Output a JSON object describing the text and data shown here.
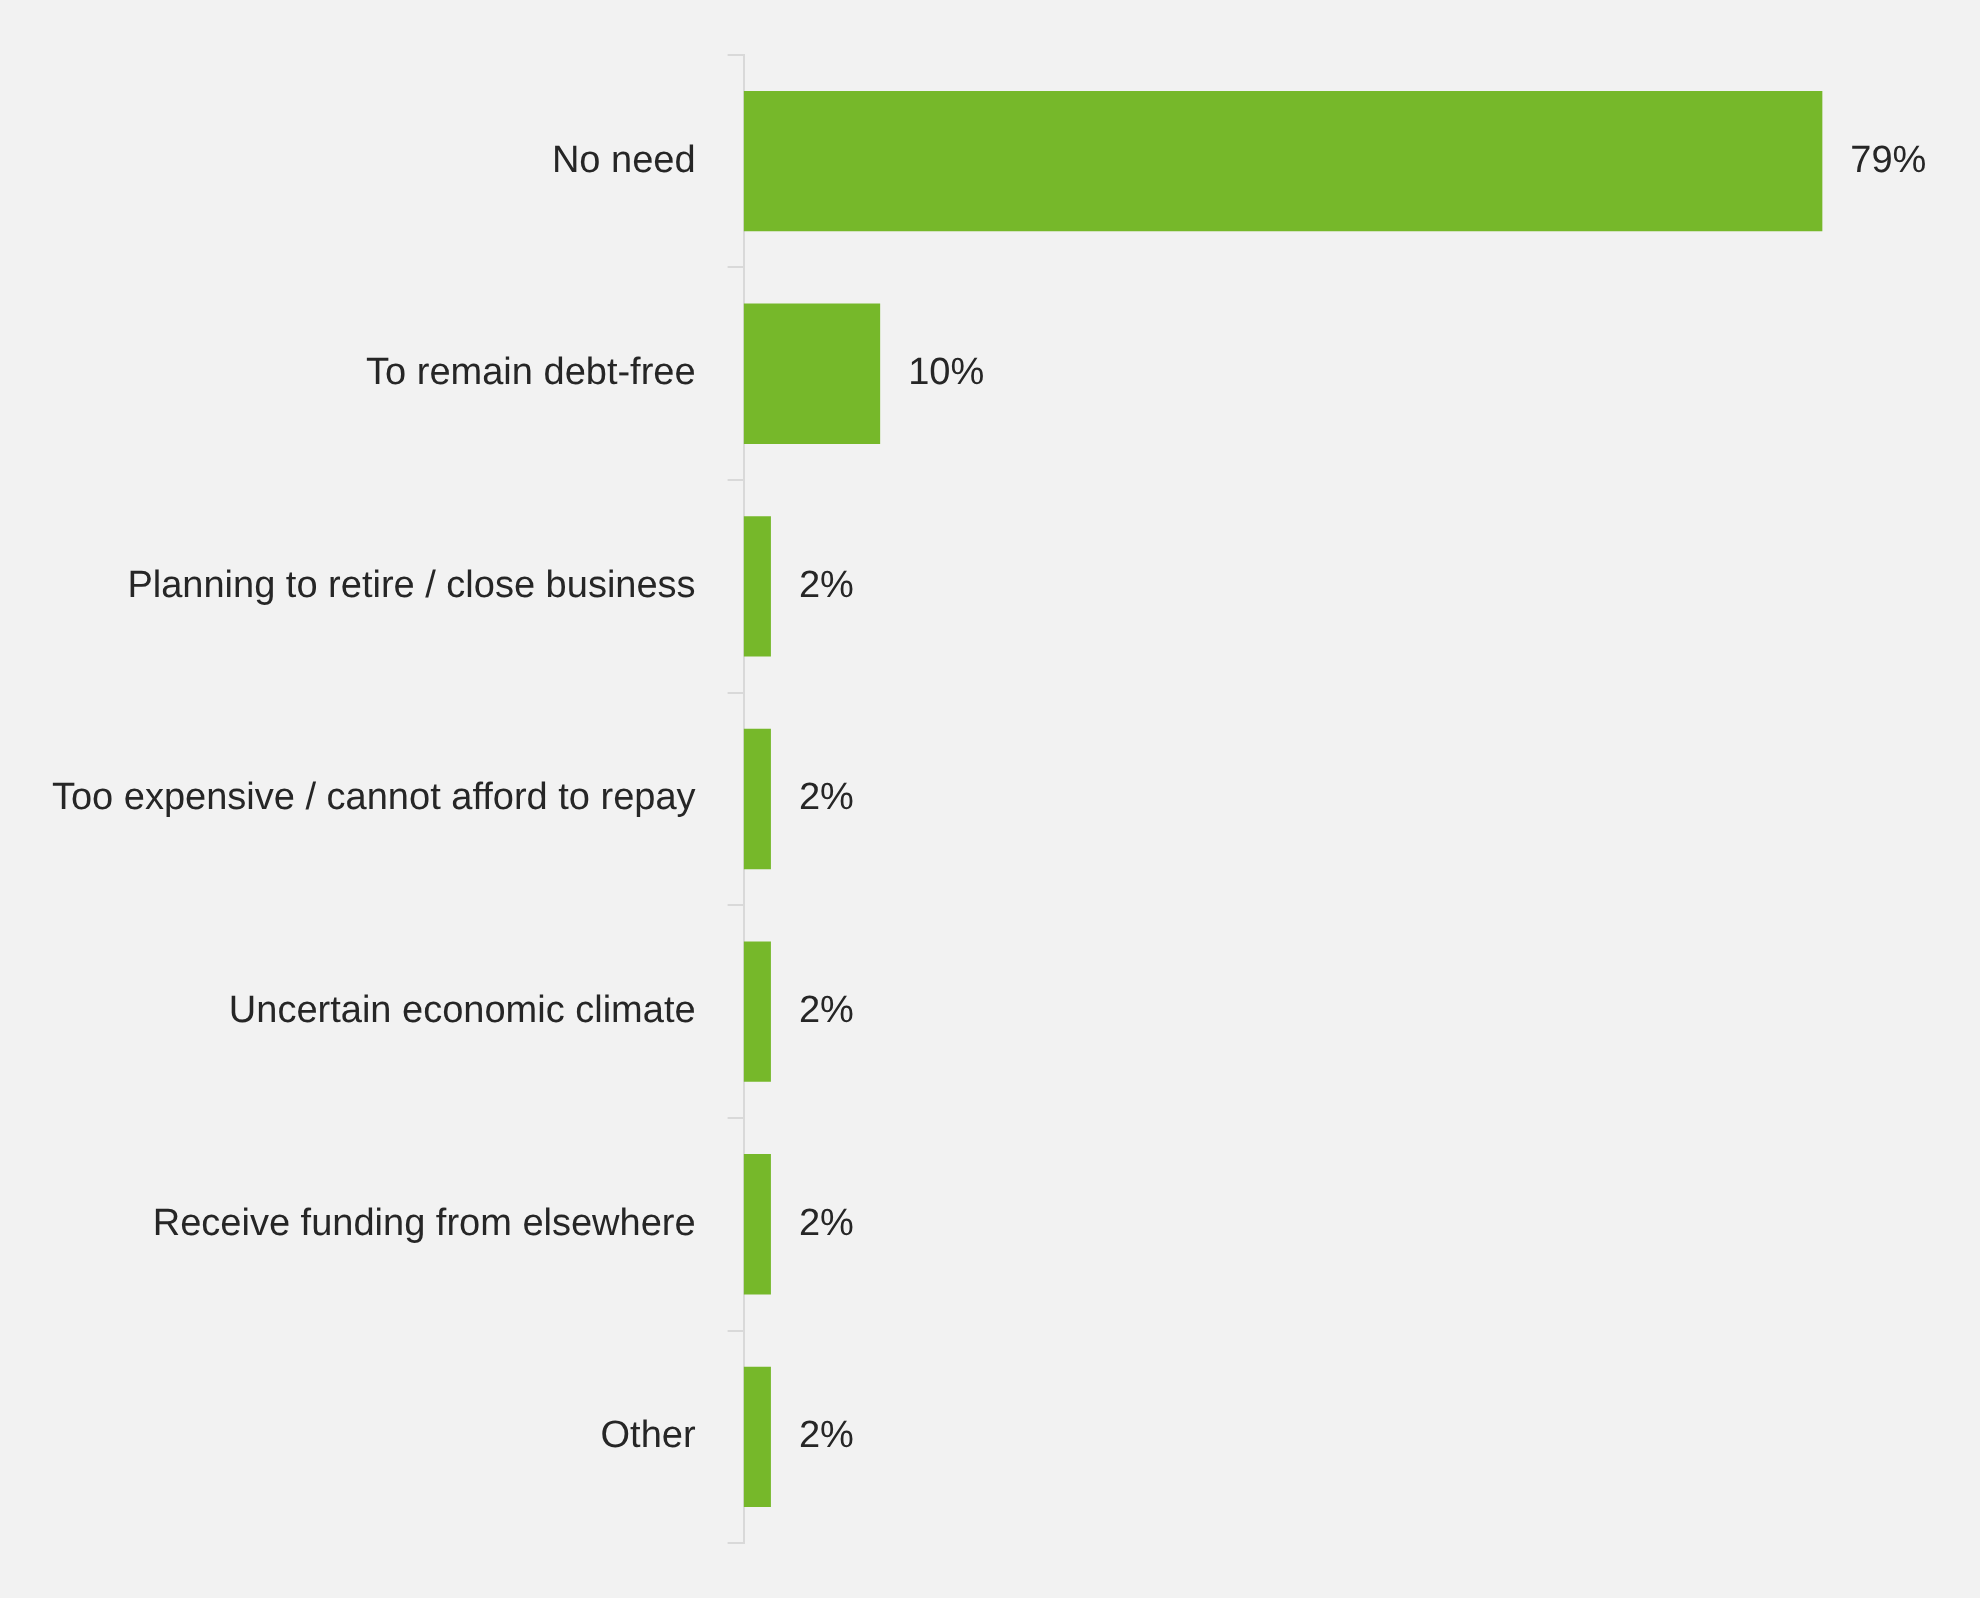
{
  "chart_data": {
    "type": "bar",
    "orientation": "horizontal",
    "categories": [
      "No need",
      "To remain debt-free",
      "Planning to retire / close business",
      "Too expensive / cannot afford to repay",
      "Uncertain economic climate",
      "Receive funding from elsewhere",
      "Other"
    ],
    "values": [
      79,
      10,
      2,
      2,
      2,
      2,
      2
    ],
    "value_labels": [
      "79%",
      "10%",
      "2%",
      "2%",
      "2%",
      "2%",
      "2%"
    ],
    "color": "#76b82a",
    "grid": false,
    "legend": false
  }
}
